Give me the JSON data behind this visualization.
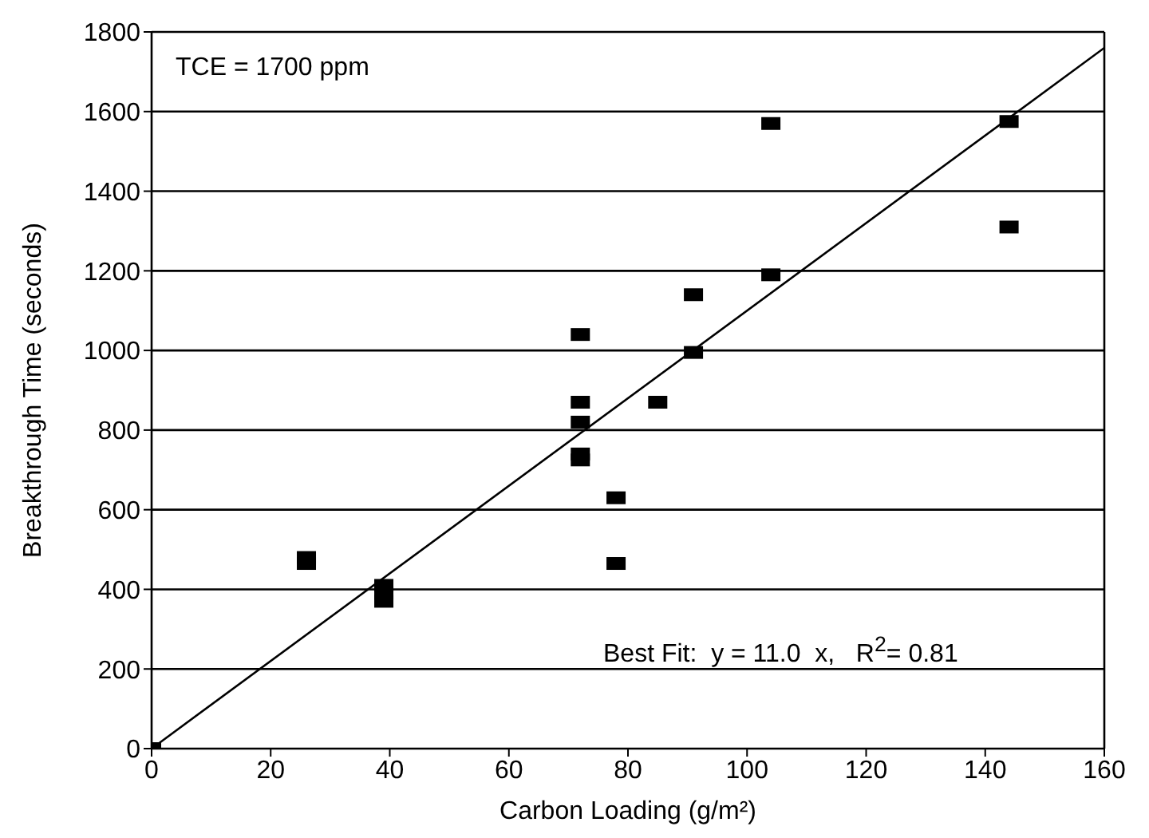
{
  "chart_data": {
    "type": "scatter",
    "xlabel": "Carbon Loading (g/m²)",
    "ylabel": "Breakthrough Time (seconds)",
    "xlim": [
      0,
      160
    ],
    "xticks": [
      0,
      20,
      40,
      60,
      80,
      100,
      120,
      140,
      160
    ],
    "ylim": [
      0,
      1800
    ],
    "yticks": [
      0,
      200,
      400,
      600,
      800,
      1000,
      1200,
      1400,
      1600,
      1800
    ],
    "grid": "y",
    "marker": "square",
    "annotations": [
      "TCE = 1700 ppm",
      "Best Fit:  y = 11.0  x,   R$^{2}$= 0.81"
    ],
    "x": [
      0,
      26,
      26,
      39,
      39,
      39,
      72,
      72,
      72,
      72,
      72,
      78,
      78,
      85,
      91,
      91,
      104,
      104,
      144,
      144
    ],
    "series": [
      {
        "color": "#000000",
        "values": [
          0,
          480,
          465,
          410,
          390,
          370,
          1040,
          870,
          820,
          740,
          725,
          630,
          465,
          870,
          1140,
          995,
          1570,
          1190,
          1575,
          1310
        ]
      },
      {
        "type": "line",
        "color": "#000000",
        "x": [
          0,
          160
        ],
        "values": [
          0,
          1760
        ],
        "marker": "none",
        "line_style": "solid"
      }
    ]
  }
}
